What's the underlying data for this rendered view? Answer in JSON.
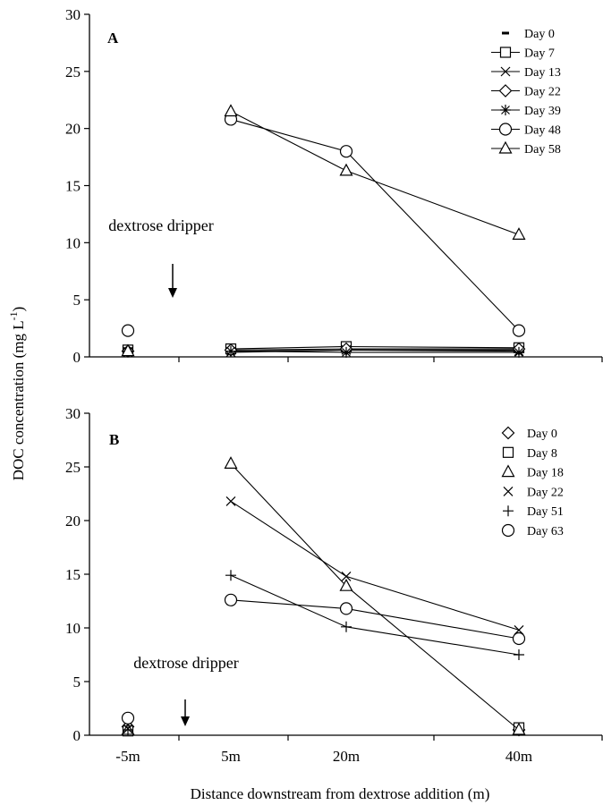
{
  "chart_data": [
    {
      "type": "line",
      "panel": "A",
      "categories": [
        "-5m",
        "5m",
        "20m",
        "40m"
      ],
      "ylim": [
        0,
        30
      ],
      "yticks": [
        0,
        5,
        10,
        15,
        20,
        25,
        30
      ],
      "grid": false,
      "legend_position": "top-right",
      "annotation": "dextrose dripper",
      "series": [
        {
          "name": "Day 0",
          "marker": "dash",
          "values": [
            0.5,
            0.5,
            0.6,
            0.6
          ]
        },
        {
          "name": "Day 7",
          "marker": "square",
          "values": [
            0.6,
            0.7,
            0.9,
            0.8
          ]
        },
        {
          "name": "Day 13",
          "marker": "x",
          "values": [
            0.4,
            0.4,
            0.6,
            0.5
          ]
        },
        {
          "name": "Day 22",
          "marker": "diamond",
          "values": [
            0.5,
            0.6,
            0.7,
            0.7
          ]
        },
        {
          "name": "Day 39",
          "marker": "asterisk",
          "values": [
            0.5,
            0.5,
            0.4,
            0.4
          ]
        },
        {
          "name": "Day 48",
          "marker": "circle",
          "values": [
            2.3,
            20.8,
            18.0,
            2.3
          ]
        },
        {
          "name": "Day 58",
          "marker": "triangle",
          "values": [
            0.5,
            21.5,
            16.3,
            10.7
          ]
        }
      ]
    },
    {
      "type": "line",
      "panel": "B",
      "categories": [
        "-5m",
        "5m",
        "20m",
        "40m"
      ],
      "ylim": [
        0,
        30
      ],
      "yticks": [
        0,
        5,
        10,
        15,
        20,
        25,
        30
      ],
      "grid": false,
      "legend_position": "top-right",
      "annotation": "dextrose dripper",
      "series": [
        {
          "name": "Day 0",
          "marker": "diamond",
          "values": [
            0.8,
            null,
            null,
            0.5
          ]
        },
        {
          "name": "Day 8",
          "marker": "square",
          "values": [
            0.4,
            null,
            null,
            0.7
          ]
        },
        {
          "name": "Day 18",
          "marker": "triangle",
          "values": [
            0.5,
            25.3,
            13.9,
            0.5
          ]
        },
        {
          "name": "Day 22",
          "marker": "x",
          "values": [
            0.6,
            21.8,
            14.8,
            9.8
          ]
        },
        {
          "name": "Day 51",
          "marker": "plus",
          "values": [
            0.5,
            14.9,
            10.1,
            7.5
          ]
        },
        {
          "name": "Day 63",
          "marker": "circle",
          "values": [
            1.6,
            12.6,
            11.8,
            9.0
          ]
        }
      ]
    }
  ],
  "xlabel": "Distance downstream from dextrose addition (m)",
  "ylabel": "DOC concentration (mg L",
  "ylabel_superscript": "-1",
  "ylabel_suffix": ")"
}
